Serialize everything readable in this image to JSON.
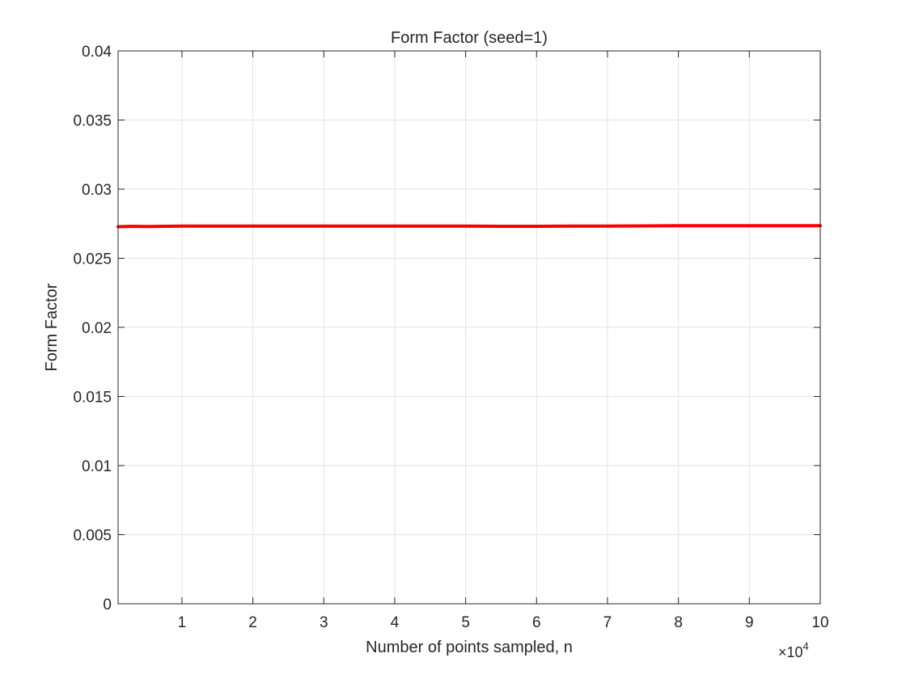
{
  "chart_data": {
    "type": "line",
    "title": "Form Factor (seed=1)",
    "xlabel": "Number of points sampled, n",
    "ylabel": "Form Factor",
    "x_exponent_label": {
      "base": "×10",
      "exponent": "4"
    },
    "xlim": [
      1000,
      100000
    ],
    "ylim": [
      0,
      0.04
    ],
    "x_ticks": [
      10000,
      20000,
      30000,
      40000,
      50000,
      60000,
      70000,
      80000,
      90000,
      100000
    ],
    "x_tick_labels": [
      "1",
      "2",
      "3",
      "4",
      "5",
      "6",
      "7",
      "8",
      "9",
      "10"
    ],
    "y_ticks": [
      0,
      0.005,
      0.01,
      0.015,
      0.02,
      0.025,
      0.03,
      0.035,
      0.04
    ],
    "y_tick_labels": [
      "0",
      "0.005",
      "0.01",
      "0.015",
      "0.02",
      "0.025",
      "0.03",
      "0.035",
      "0.04"
    ],
    "grid": true,
    "series": [
      {
        "color": "#ff0000",
        "x": [
          1000,
          3000,
          5000,
          10000,
          15000,
          20000,
          25000,
          30000,
          35000,
          40000,
          45000,
          50000,
          55000,
          60000,
          65000,
          70000,
          75000,
          80000,
          85000,
          90000,
          95000,
          100000
        ],
        "y": [
          0.02728,
          0.02731,
          0.0273,
          0.02732,
          0.02733,
          0.02732,
          0.02732,
          0.02733,
          0.02733,
          0.02733,
          0.02733,
          0.02732,
          0.02731,
          0.02731,
          0.02732,
          0.02733,
          0.02734,
          0.02735,
          0.02735,
          0.02735,
          0.02735,
          0.02735
        ]
      }
    ]
  }
}
